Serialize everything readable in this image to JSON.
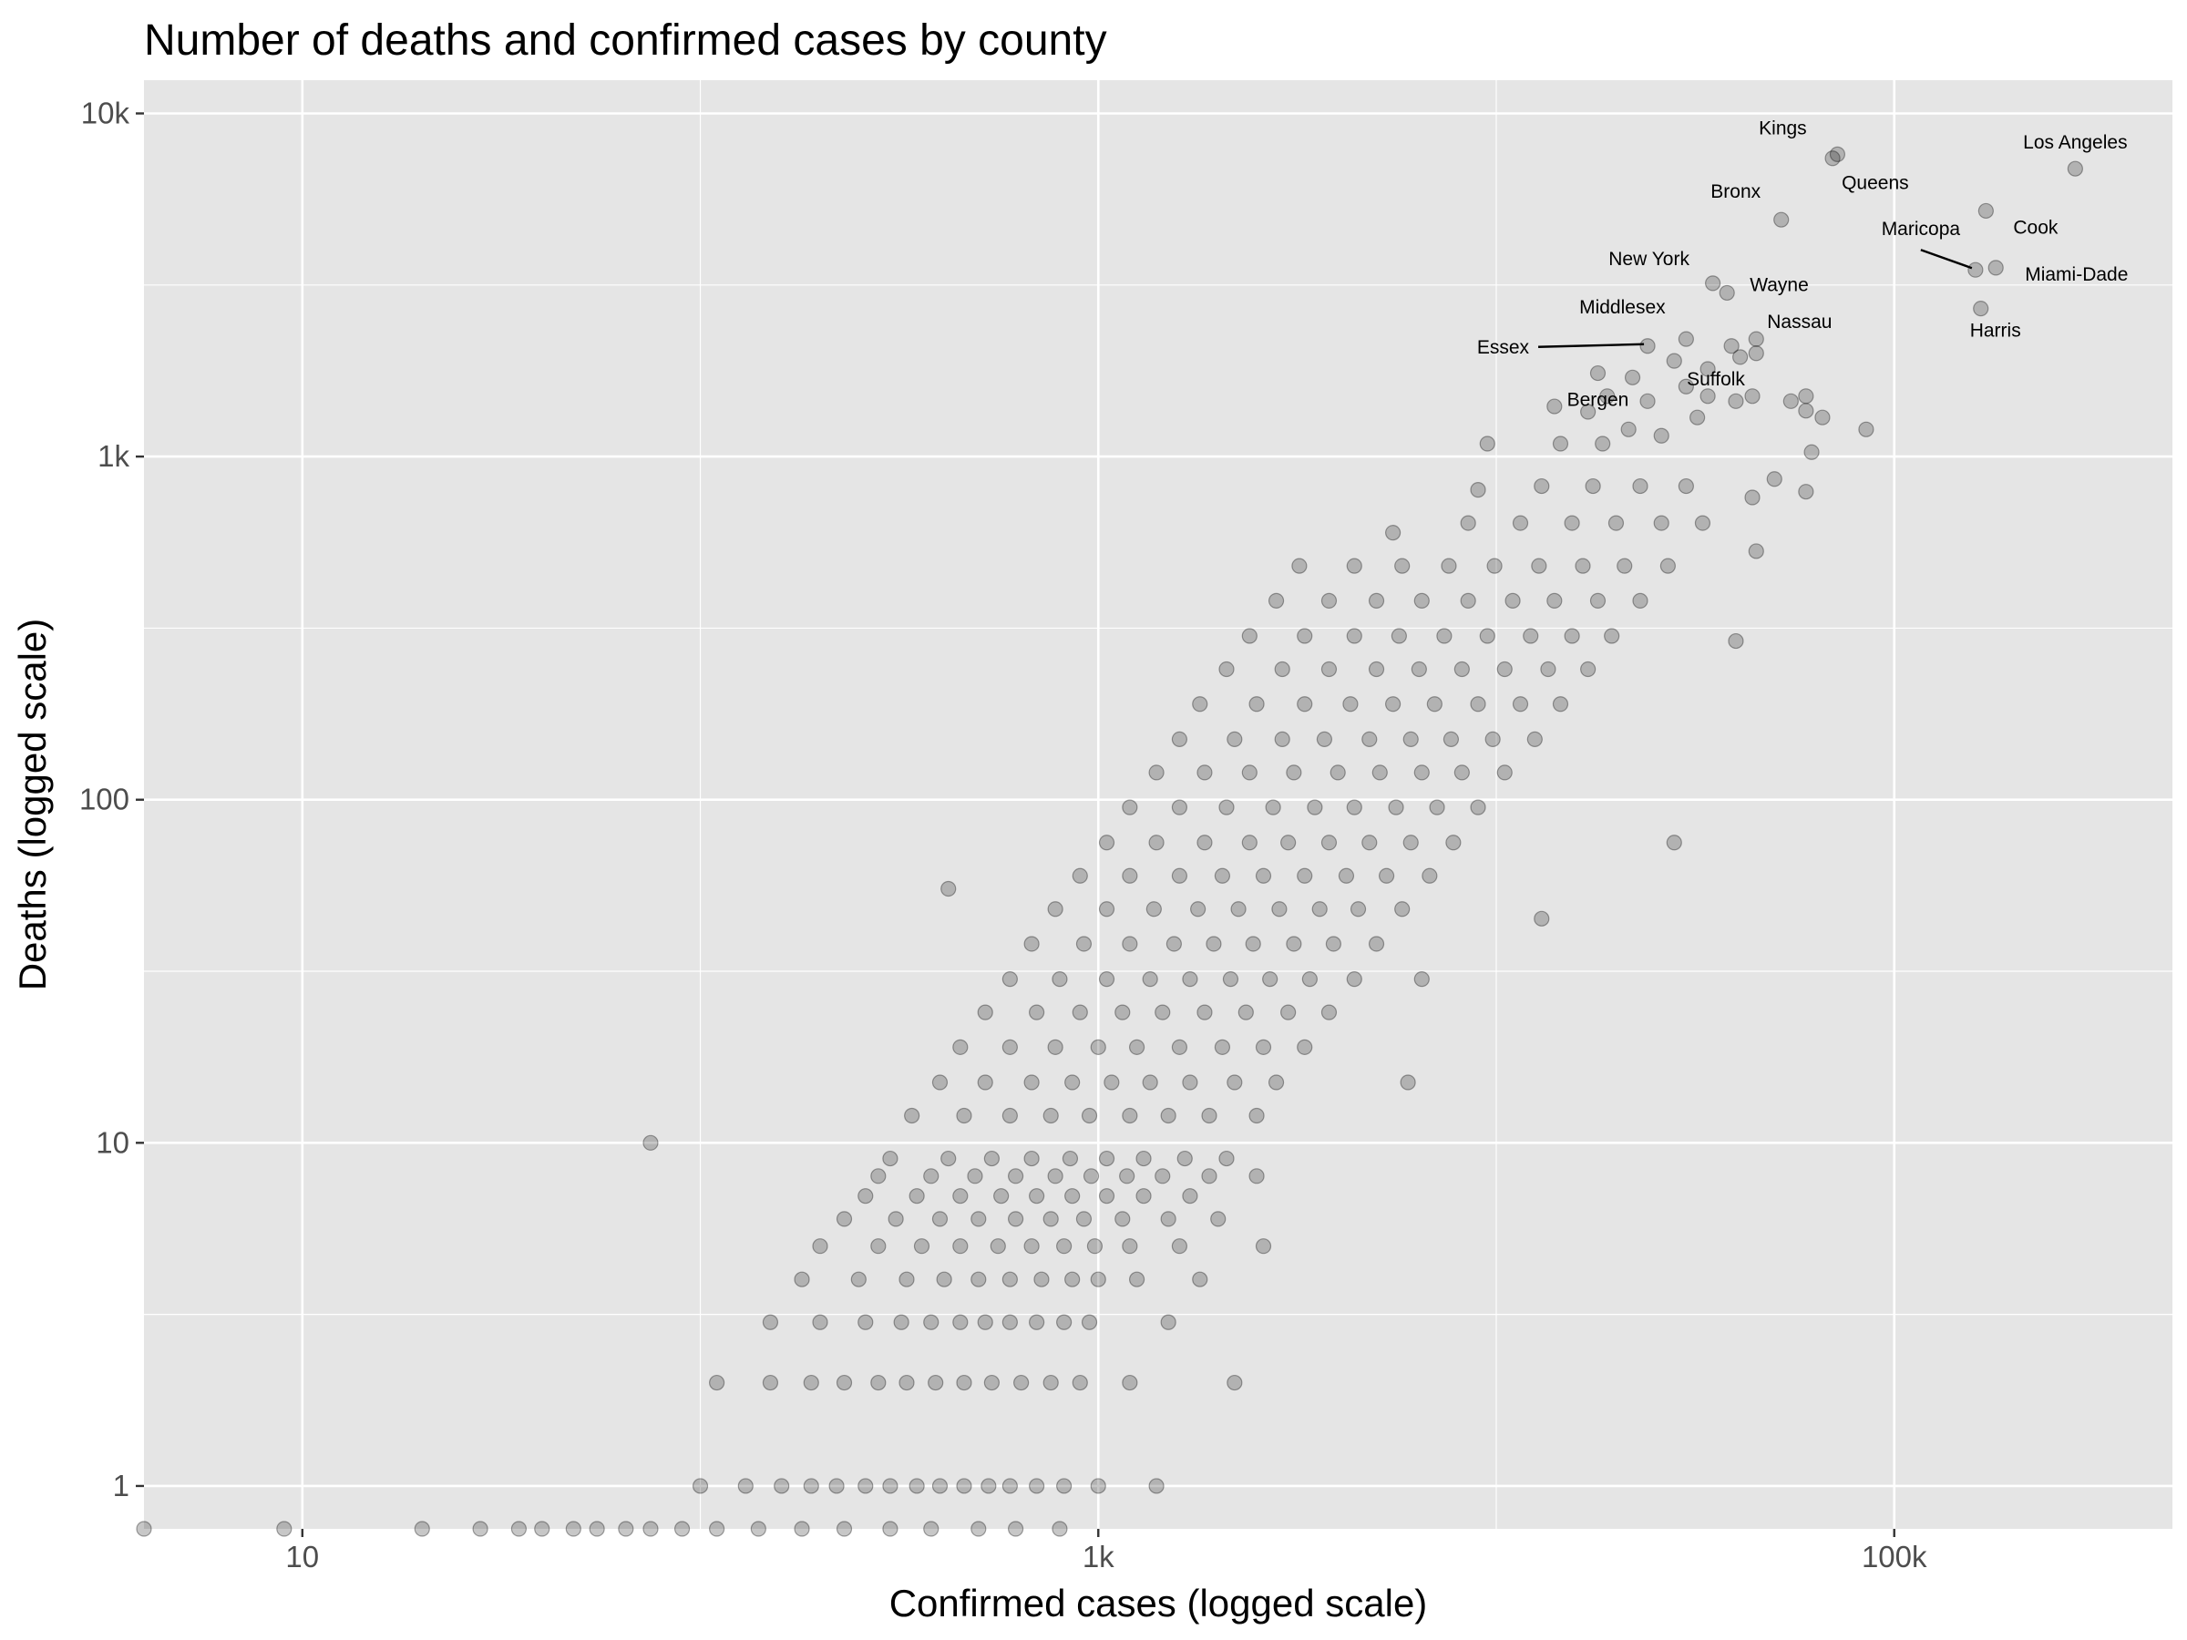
{
  "chart_data": {
    "type": "scatter",
    "title": "Number of deaths and confirmed cases by county",
    "xlabel": "Confirmed cases (logged scale)",
    "ylabel": "Deaths (logged scale)",
    "x_scale": "log10",
    "y_scale": "log10",
    "xlim": [
      4,
      500000
    ],
    "ylim": [
      0.75,
      12500
    ],
    "grid": true,
    "legend": "none",
    "x_ticks": [
      {
        "value": 10,
        "label": "10"
      },
      {
        "value": 1000,
        "label": "1k"
      },
      {
        "value": 100000,
        "label": "100k"
      }
    ],
    "y_ticks": [
      {
        "value": 1,
        "label": "1"
      },
      {
        "value": 10,
        "label": "10"
      },
      {
        "value": 100,
        "label": "100"
      },
      {
        "value": 1000,
        "label": "1k"
      },
      {
        "value": 10000,
        "label": "10k"
      }
    ],
    "point_color": "#000000",
    "point_opacity": 0.22,
    "panel_background": "#e5e5e5",
    "grid_color": "#ffffff",
    "labeled_points": [
      {
        "name": "Kings",
        "cases": 72000,
        "deaths": 7600
      },
      {
        "name": "Queens",
        "cases": 70000,
        "deaths": 7400
      },
      {
        "name": "Los Angeles",
        "cases": 285000,
        "deaths": 6900
      },
      {
        "name": "Bronx",
        "cases": 52000,
        "deaths": 4900
      },
      {
        "name": "Cook",
        "cases": 170000,
        "deaths": 5200
      },
      {
        "name": "Maricopa",
        "cases": 160000,
        "deaths": 3500
      },
      {
        "name": "Miami-Dade",
        "cases": 180000,
        "deaths": 3550
      },
      {
        "name": "New York",
        "cases": 35000,
        "deaths": 3200
      },
      {
        "name": "Wayne",
        "cases": 38000,
        "deaths": 3000
      },
      {
        "name": "Harris",
        "cases": 165000,
        "deaths": 2700
      },
      {
        "name": "Middlesex",
        "cases": 30000,
        "deaths": 2200
      },
      {
        "name": "Nassau",
        "cases": 45000,
        "deaths": 2200
      },
      {
        "name": "Essex",
        "cases": 24000,
        "deaths": 2100
      },
      {
        "name": "Bergen",
        "cases": 18000,
        "deaths": 1750
      },
      {
        "name": "Suffolk",
        "cases": 44000,
        "deaths": 1500
      }
    ],
    "points": [
      [
        4,
        0.75
      ],
      [
        9,
        0.75
      ],
      [
        20,
        0.75
      ],
      [
        28,
        0.75
      ],
      [
        35,
        0.75
      ],
      [
        40,
        0.75
      ],
      [
        48,
        0.75
      ],
      [
        55,
        0.75
      ],
      [
        65,
        0.75
      ],
      [
        75,
        0.75
      ],
      [
        90,
        0.75
      ],
      [
        110,
        0.75
      ],
      [
        140,
        0.75
      ],
      [
        180,
        0.75
      ],
      [
        230,
        0.75
      ],
      [
        300,
        0.75
      ],
      [
        380,
        0.75
      ],
      [
        500,
        0.75
      ],
      [
        620,
        0.75
      ],
      [
        800,
        0.75
      ],
      [
        100,
        1
      ],
      [
        130,
        1
      ],
      [
        160,
        1
      ],
      [
        190,
        1
      ],
      [
        220,
        1
      ],
      [
        260,
        1
      ],
      [
        300,
        1
      ],
      [
        350,
        1
      ],
      [
        400,
        1
      ],
      [
        460,
        1
      ],
      [
        530,
        1
      ],
      [
        600,
        1
      ],
      [
        700,
        1
      ],
      [
        820,
        1
      ],
      [
        1000,
        1
      ],
      [
        1400,
        1
      ],
      [
        110,
        2
      ],
      [
        150,
        2
      ],
      [
        190,
        2
      ],
      [
        230,
        2
      ],
      [
        280,
        2
      ],
      [
        330,
        2
      ],
      [
        390,
        2
      ],
      [
        460,
        2
      ],
      [
        540,
        2
      ],
      [
        640,
        2
      ],
      [
        760,
        2
      ],
      [
        900,
        2
      ],
      [
        1200,
        2
      ],
      [
        2200,
        2
      ],
      [
        150,
        3
      ],
      [
        200,
        3
      ],
      [
        260,
        3
      ],
      [
        320,
        3
      ],
      [
        380,
        3
      ],
      [
        450,
        3
      ],
      [
        520,
        3
      ],
      [
        600,
        3
      ],
      [
        700,
        3
      ],
      [
        820,
        3
      ],
      [
        950,
        3
      ],
      [
        1500,
        3
      ],
      [
        180,
        4
      ],
      [
        250,
        4
      ],
      [
        330,
        4
      ],
      [
        410,
        4
      ],
      [
        500,
        4
      ],
      [
        600,
        4
      ],
      [
        720,
        4
      ],
      [
        860,
        4
      ],
      [
        1000,
        4
      ],
      [
        1250,
        4
      ],
      [
        1800,
        4
      ],
      [
        200,
        5
      ],
      [
        280,
        5
      ],
      [
        360,
        5
      ],
      [
        450,
        5
      ],
      [
        560,
        5
      ],
      [
        680,
        5
      ],
      [
        820,
        5
      ],
      [
        980,
        5
      ],
      [
        1200,
        5
      ],
      [
        1600,
        5
      ],
      [
        2600,
        5
      ],
      [
        230,
        6
      ],
      [
        310,
        6
      ],
      [
        400,
        6
      ],
      [
        500,
        6
      ],
      [
        620,
        6
      ],
      [
        760,
        6
      ],
      [
        920,
        6
      ],
      [
        1150,
        6
      ],
      [
        1500,
        6
      ],
      [
        2000,
        6
      ],
      [
        260,
        7
      ],
      [
        350,
        7
      ],
      [
        450,
        7
      ],
      [
        570,
        7
      ],
      [
        700,
        7
      ],
      [
        860,
        7
      ],
      [
        1050,
        7
      ],
      [
        1300,
        7
      ],
      [
        1700,
        7
      ],
      [
        280,
        8
      ],
      [
        380,
        8
      ],
      [
        490,
        8
      ],
      [
        620,
        8
      ],
      [
        780,
        8
      ],
      [
        960,
        8
      ],
      [
        1180,
        8
      ],
      [
        1450,
        8
      ],
      [
        1900,
        8
      ],
      [
        2500,
        8
      ],
      [
        300,
        9
      ],
      [
        420,
        9
      ],
      [
        540,
        9
      ],
      [
        680,
        9
      ],
      [
        850,
        9
      ],
      [
        1050,
        9
      ],
      [
        1300,
        9
      ],
      [
        1650,
        9
      ],
      [
        2100,
        9
      ],
      [
        75,
        10
      ],
      [
        340,
        12
      ],
      [
        460,
        12
      ],
      [
        600,
        12
      ],
      [
        760,
        12
      ],
      [
        950,
        12
      ],
      [
        1200,
        12
      ],
      [
        1500,
        12
      ],
      [
        1900,
        12
      ],
      [
        2500,
        12
      ],
      [
        400,
        15
      ],
      [
        520,
        15
      ],
      [
        680,
        15
      ],
      [
        860,
        15
      ],
      [
        1080,
        15
      ],
      [
        1350,
        15
      ],
      [
        1700,
        15
      ],
      [
        2200,
        15
      ],
      [
        2800,
        15
      ],
      [
        6000,
        15
      ],
      [
        450,
        19
      ],
      [
        600,
        19
      ],
      [
        780,
        19
      ],
      [
        1000,
        19
      ],
      [
        1250,
        19
      ],
      [
        1600,
        19
      ],
      [
        2050,
        19
      ],
      [
        2600,
        19
      ],
      [
        3300,
        19
      ],
      [
        520,
        24
      ],
      [
        700,
        24
      ],
      [
        900,
        24
      ],
      [
        1150,
        24
      ],
      [
        1450,
        24
      ],
      [
        1850,
        24
      ],
      [
        2350,
        24
      ],
      [
        3000,
        24
      ],
      [
        3800,
        24
      ],
      [
        600,
        30
      ],
      [
        800,
        30
      ],
      [
        1050,
        30
      ],
      [
        1350,
        30
      ],
      [
        1700,
        30
      ],
      [
        2150,
        30
      ],
      [
        2700,
        30
      ],
      [
        3400,
        30
      ],
      [
        4400,
        30
      ],
      [
        6500,
        30
      ],
      [
        680,
        38
      ],
      [
        920,
        38
      ],
      [
        1200,
        38
      ],
      [
        1550,
        38
      ],
      [
        1950,
        38
      ],
      [
        2450,
        38
      ],
      [
        3100,
        38
      ],
      [
        3900,
        38
      ],
      [
        5000,
        38
      ],
      [
        780,
        48
      ],
      [
        1050,
        48
      ],
      [
        1380,
        48
      ],
      [
        1780,
        48
      ],
      [
        2250,
        48
      ],
      [
        2850,
        48
      ],
      [
        3600,
        48
      ],
      [
        4500,
        48
      ],
      [
        5800,
        48
      ],
      [
        13000,
        45
      ],
      [
        420,
        55
      ],
      [
        900,
        60
      ],
      [
        1200,
        60
      ],
      [
        1600,
        60
      ],
      [
        2050,
        60
      ],
      [
        2600,
        60
      ],
      [
        3300,
        60
      ],
      [
        4200,
        60
      ],
      [
        5300,
        60
      ],
      [
        6800,
        60
      ],
      [
        1050,
        75
      ],
      [
        1400,
        75
      ],
      [
        1850,
        75
      ],
      [
        2400,
        75
      ],
      [
        3000,
        75
      ],
      [
        3800,
        75
      ],
      [
        4800,
        75
      ],
      [
        6100,
        75
      ],
      [
        7800,
        75
      ],
      [
        28000,
        75
      ],
      [
        1200,
        95
      ],
      [
        1600,
        95
      ],
      [
        2100,
        95
      ],
      [
        2750,
        95
      ],
      [
        3500,
        95
      ],
      [
        4400,
        95
      ],
      [
        5600,
        95
      ],
      [
        7100,
        95
      ],
      [
        9000,
        95
      ],
      [
        1400,
        120
      ],
      [
        1850,
        120
      ],
      [
        2400,
        120
      ],
      [
        3100,
        120
      ],
      [
        4000,
        120
      ],
      [
        5100,
        120
      ],
      [
        6500,
        120
      ],
      [
        8200,
        120
      ],
      [
        10500,
        120
      ],
      [
        1600,
        150
      ],
      [
        2200,
        150
      ],
      [
        2900,
        150
      ],
      [
        3700,
        150
      ],
      [
        4800,
        150
      ],
      [
        6100,
        150
      ],
      [
        7700,
        150
      ],
      [
        9800,
        150
      ],
      [
        12500,
        150
      ],
      [
        1800,
        190
      ],
      [
        2500,
        190
      ],
      [
        3300,
        190
      ],
      [
        4300,
        190
      ],
      [
        5500,
        190
      ],
      [
        7000,
        190
      ],
      [
        9000,
        190
      ],
      [
        11500,
        190
      ],
      [
        14500,
        190
      ],
      [
        2100,
        240
      ],
      [
        2900,
        240
      ],
      [
        3800,
        240
      ],
      [
        5000,
        240
      ],
      [
        6400,
        240
      ],
      [
        8200,
        240
      ],
      [
        10500,
        240
      ],
      [
        13500,
        240
      ],
      [
        17000,
        240
      ],
      [
        40000,
        290
      ],
      [
        2400,
        300
      ],
      [
        3300,
        300
      ],
      [
        4400,
        300
      ],
      [
        5700,
        300
      ],
      [
        7400,
        300
      ],
      [
        9500,
        300
      ],
      [
        12200,
        300
      ],
      [
        15500,
        300
      ],
      [
        19500,
        300
      ],
      [
        2800,
        380
      ],
      [
        3800,
        380
      ],
      [
        5000,
        380
      ],
      [
        6500,
        380
      ],
      [
        8500,
        380
      ],
      [
        11000,
        380
      ],
      [
        14000,
        380
      ],
      [
        18000,
        380
      ],
      [
        23000,
        380
      ],
      [
        3200,
        480
      ],
      [
        4400,
        480
      ],
      [
        5800,
        480
      ],
      [
        7600,
        480
      ],
      [
        9900,
        480
      ],
      [
        12800,
        480
      ],
      [
        16500,
        480
      ],
      [
        21000,
        480
      ],
      [
        27000,
        480
      ],
      [
        45000,
        530
      ],
      [
        5500,
        600
      ],
      [
        8500,
        640
      ],
      [
        11500,
        640
      ],
      [
        15500,
        640
      ],
      [
        20000,
        640
      ],
      [
        26000,
        640
      ],
      [
        33000,
        640
      ],
      [
        44000,
        760
      ],
      [
        9000,
        800
      ],
      [
        13000,
        820
      ],
      [
        17500,
        820
      ],
      [
        23000,
        820
      ],
      [
        30000,
        820
      ],
      [
        50000,
        860
      ],
      [
        60000,
        790
      ],
      [
        62000,
        1030
      ],
      [
        9500,
        1090
      ],
      [
        14500,
        1090
      ],
      [
        18500,
        1090
      ],
      [
        21500,
        1200
      ],
      [
        26000,
        1150
      ],
      [
        32000,
        1300
      ],
      [
        60000,
        1360
      ],
      [
        66000,
        1300
      ],
      [
        85000,
        1200
      ],
      [
        14000,
        1400
      ],
      [
        17000,
        1350
      ],
      [
        19000,
        1500
      ],
      [
        24000,
        1450
      ],
      [
        34000,
        1500
      ],
      [
        40000,
        1450
      ],
      [
        55000,
        1450
      ],
      [
        60000,
        1500
      ],
      [
        22000,
        1700
      ],
      [
        30000,
        1600
      ],
      [
        28000,
        1900
      ],
      [
        34000,
        1800
      ],
      [
        41000,
        1950
      ],
      [
        45000,
        2000
      ],
      [
        39000,
        2100
      ]
    ]
  }
}
